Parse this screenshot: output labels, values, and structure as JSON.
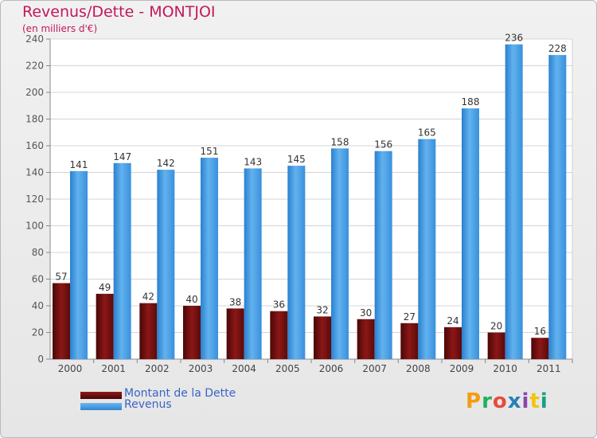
{
  "title": "Revenus/Dette - MONTJOI",
  "subtitle": "(en milliers d'€)",
  "logo": {
    "text": "Proxiti",
    "colors": [
      "#f39c12",
      "#27ae60",
      "#e74c3c",
      "#2980b9",
      "#8e44ad",
      "#f1c40f",
      "#16a085"
    ]
  },
  "legend": [
    {
      "label": "Montant de la Dette",
      "color": "#6b0b0b"
    },
    {
      "label": "Revenus",
      "color": "#3e97e0"
    }
  ],
  "chart_data": {
    "type": "bar",
    "title": "Revenus/Dette - MONTJOI",
    "subtitle": "(en milliers d'€)",
    "categories": [
      "2000",
      "2001",
      "2002",
      "2003",
      "2004",
      "2005",
      "2006",
      "2007",
      "2008",
      "2009",
      "2010",
      "2011"
    ],
    "series": [
      {
        "name": "Montant de la Dette",
        "color": "#6b0b0b",
        "values": [
          57,
          49,
          42,
          40,
          38,
          36,
          32,
          30,
          27,
          24,
          20,
          16
        ]
      },
      {
        "name": "Revenus",
        "color": "#3e97e0",
        "values": [
          141,
          147,
          142,
          151,
          143,
          145,
          158,
          156,
          165,
          188,
          236,
          228
        ]
      }
    ],
    "ylim": [
      0,
      240
    ],
    "yticks": [
      0,
      20,
      40,
      60,
      80,
      100,
      120,
      140,
      160,
      180,
      200,
      220,
      240
    ],
    "grid": true,
    "legend_position": "bottom-left"
  }
}
